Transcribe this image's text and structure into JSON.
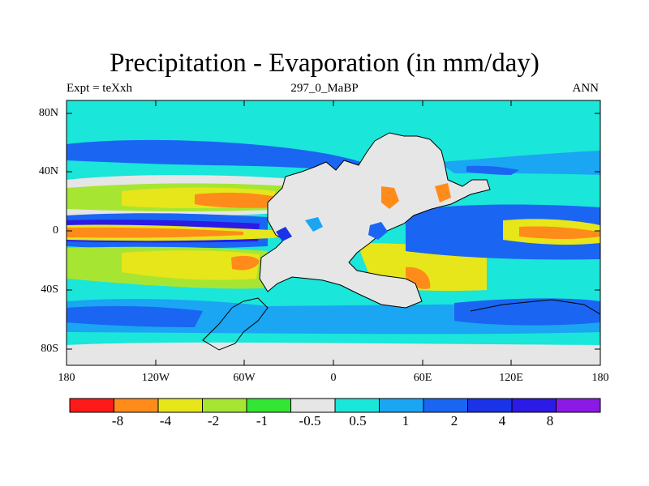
{
  "figure": {
    "title": "Precipitation - Evaporation (in mm/day)",
    "left_string": "Expt = teXxh",
    "center_string": "297_0_MaBP",
    "right_string": "ANN"
  },
  "map": {
    "lat_ticks": [
      "80N",
      "40N",
      "0",
      "40S",
      "80S"
    ],
    "lon_ticks": [
      "180",
      "120W",
      "60W",
      "0",
      "60E",
      "120E",
      "180"
    ],
    "land_color": "#e6e6e6"
  },
  "colorbar": {
    "colors": [
      "#ff1a1a",
      "#ff8c1a",
      "#e6e61a",
      "#a6e632",
      "#33e633",
      "#e6e6e6",
      "#1ae6d9",
      "#1aa6f2",
      "#1a66f2",
      "#1a33e6",
      "#2c1ae6",
      "#8c1ae6"
    ],
    "labels": [
      "-8",
      "-4",
      "-2",
      "-1",
      "-0.5",
      "0.5",
      "1",
      "2",
      "4",
      "8"
    ]
  }
}
